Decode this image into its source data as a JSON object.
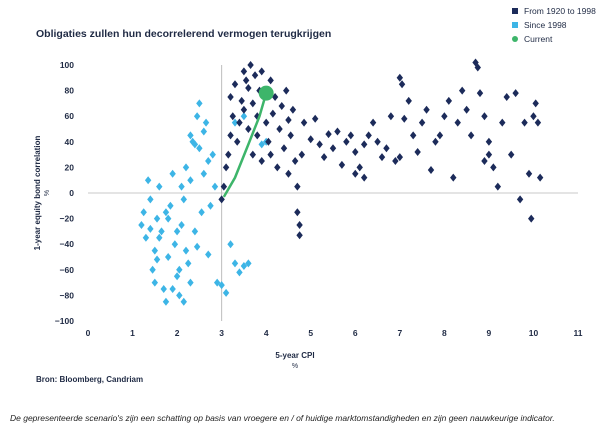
{
  "chart_data": {
    "type": "scatter",
    "title": "Obligaties zullen hun decorrelerend vermogen terugkrijgen",
    "xlabel": "5-year CPI",
    "xlabel_unit": "%",
    "ylabel": "1-year equity bond correlation",
    "ylabel_unit": "%",
    "xlim": [
      0,
      11
    ],
    "ylim": [
      -100,
      100
    ],
    "xticks": [
      "0",
      "1",
      "2",
      "3",
      "4",
      "5",
      "6",
      "7",
      "8",
      "9",
      "10",
      "11"
    ],
    "yticks": [
      "−100",
      "−80",
      "−60",
      "−40",
      "−20",
      "0",
      "20",
      "40",
      "60",
      "80",
      "100"
    ],
    "reference_line": {
      "x": 3
    },
    "legend_position": "top-right",
    "colors": {
      "s1920": "#1c2b5a",
      "s1998": "#3db5e6",
      "current": "#3db56a"
    },
    "series": [
      {
        "name": "From 1920 to 1998",
        "marker": "diamond",
        "points": [
          [
            3.0,
            -5
          ],
          [
            3.05,
            5
          ],
          [
            3.1,
            20
          ],
          [
            3.15,
            30
          ],
          [
            3.2,
            45
          ],
          [
            3.2,
            75
          ],
          [
            3.25,
            60
          ],
          [
            3.3,
            85
          ],
          [
            3.35,
            40
          ],
          [
            3.4,
            55
          ],
          [
            3.45,
            72
          ],
          [
            3.5,
            95
          ],
          [
            3.5,
            65
          ],
          [
            3.55,
            88
          ],
          [
            3.6,
            82
          ],
          [
            3.6,
            50
          ],
          [
            3.65,
            100
          ],
          [
            3.7,
            70
          ],
          [
            3.7,
            30
          ],
          [
            3.75,
            92
          ],
          [
            3.8,
            60
          ],
          [
            3.8,
            45
          ],
          [
            3.85,
            80
          ],
          [
            3.9,
            95
          ],
          [
            3.9,
            25
          ],
          [
            4.0,
            78
          ],
          [
            4.0,
            55
          ],
          [
            4.05,
            40
          ],
          [
            4.1,
            88
          ],
          [
            4.1,
            30
          ],
          [
            4.15,
            62
          ],
          [
            4.2,
            75
          ],
          [
            4.25,
            20
          ],
          [
            4.3,
            50
          ],
          [
            4.35,
            68
          ],
          [
            4.4,
            35
          ],
          [
            4.45,
            80
          ],
          [
            4.5,
            57
          ],
          [
            4.5,
            15
          ],
          [
            4.55,
            45
          ],
          [
            4.6,
            65
          ],
          [
            4.65,
            25
          ],
          [
            4.7,
            5
          ],
          [
            4.7,
            -15
          ],
          [
            4.75,
            -25
          ],
          [
            4.75,
            -33
          ],
          [
            4.8,
            30
          ],
          [
            4.85,
            55
          ],
          [
            5.0,
            42
          ],
          [
            5.1,
            58
          ],
          [
            5.2,
            38
          ],
          [
            5.3,
            28
          ],
          [
            5.4,
            46
          ],
          [
            5.5,
            35
          ],
          [
            5.6,
            48
          ],
          [
            5.7,
            22
          ],
          [
            5.8,
            40
          ],
          [
            5.9,
            45
          ],
          [
            6.0,
            32
          ],
          [
            6.0,
            15
          ],
          [
            6.1,
            20
          ],
          [
            6.2,
            38
          ],
          [
            6.3,
            45
          ],
          [
            6.4,
            55
          ],
          [
            6.5,
            40
          ],
          [
            6.6,
            28
          ],
          [
            6.7,
            35
          ],
          [
            6.8,
            60
          ],
          [
            6.9,
            25
          ],
          [
            7.0,
            90
          ],
          [
            7.05,
            85
          ],
          [
            7.1,
            58
          ],
          [
            7.2,
            72
          ],
          [
            7.3,
            45
          ],
          [
            7.4,
            32
          ],
          [
            7.5,
            55
          ],
          [
            7.6,
            65
          ],
          [
            7.7,
            18
          ],
          [
            7.8,
            40
          ],
          [
            7.9,
            45
          ],
          [
            8.0,
            60
          ],
          [
            8.1,
            72
          ],
          [
            8.2,
            12
          ],
          [
            8.3,
            55
          ],
          [
            8.4,
            80
          ],
          [
            8.5,
            65
          ],
          [
            8.6,
            45
          ],
          [
            8.7,
            102
          ],
          [
            8.75,
            98
          ],
          [
            8.8,
            78
          ],
          [
            8.9,
            60
          ],
          [
            9.0,
            40
          ],
          [
            9.1,
            20
          ],
          [
            9.2,
            5
          ],
          [
            9.3,
            55
          ],
          [
            9.4,
            75
          ],
          [
            9.5,
            30
          ],
          [
            9.6,
            78
          ],
          [
            9.7,
            -5
          ],
          [
            9.8,
            55
          ],
          [
            9.9,
            15
          ],
          [
            9.95,
            -20
          ],
          [
            10.0,
            60
          ],
          [
            10.05,
            70
          ],
          [
            10.1,
            55
          ],
          [
            10.15,
            12
          ],
          [
            9.0,
            30
          ],
          [
            8.9,
            25
          ],
          [
            7.0,
            28
          ],
          [
            6.2,
            12
          ]
        ]
      },
      {
        "name": "Since 1998",
        "marker": "diamond",
        "points": [
          [
            1.2,
            -25
          ],
          [
            1.25,
            -15
          ],
          [
            1.3,
            -35
          ],
          [
            1.35,
            10
          ],
          [
            1.4,
            -5
          ],
          [
            1.45,
            -60
          ],
          [
            1.5,
            -70
          ],
          [
            1.5,
            -45
          ],
          [
            1.55,
            -20
          ],
          [
            1.6,
            5
          ],
          [
            1.65,
            -30
          ],
          [
            1.7,
            -75
          ],
          [
            1.75,
            -85
          ],
          [
            1.8,
            -50
          ],
          [
            1.85,
            -10
          ],
          [
            1.9,
            15
          ],
          [
            1.95,
            -40
          ],
          [
            2.0,
            -65
          ],
          [
            2.05,
            -80
          ],
          [
            2.1,
            -25
          ],
          [
            2.15,
            -5
          ],
          [
            2.2,
            20
          ],
          [
            2.25,
            -55
          ],
          [
            2.3,
            -70
          ],
          [
            2.3,
            45
          ],
          [
            2.35,
            40
          ],
          [
            2.4,
            -30
          ],
          [
            2.45,
            60
          ],
          [
            2.5,
            70
          ],
          [
            2.5,
            35
          ],
          [
            2.55,
            -15
          ],
          [
            2.6,
            15
          ],
          [
            2.65,
            55
          ],
          [
            2.7,
            25
          ],
          [
            2.75,
            -10
          ],
          [
            2.8,
            30
          ],
          [
            2.85,
            5
          ],
          [
            2.9,
            -70
          ],
          [
            3.0,
            -72
          ],
          [
            3.1,
            -78
          ],
          [
            3.3,
            -55
          ],
          [
            3.4,
            -62
          ],
          [
            3.5,
            -57
          ],
          [
            3.6,
            -55
          ],
          [
            3.2,
            -40
          ],
          [
            1.4,
            -28
          ],
          [
            1.6,
            -35
          ],
          [
            1.75,
            -15
          ],
          [
            2.0,
            -30
          ],
          [
            2.2,
            -45
          ],
          [
            1.9,
            -75
          ],
          [
            2.05,
            -60
          ],
          [
            2.15,
            -85
          ],
          [
            2.6,
            48
          ],
          [
            2.4,
            38
          ],
          [
            2.3,
            10
          ],
          [
            2.1,
            5
          ],
          [
            3.3,
            55
          ],
          [
            3.5,
            60
          ],
          [
            3.9,
            38
          ],
          [
            4.0,
            40
          ],
          [
            1.8,
            -20
          ],
          [
            2.45,
            -42
          ],
          [
            1.55,
            -52
          ],
          [
            2.7,
            -48
          ]
        ]
      },
      {
        "name": "Current",
        "marker": "circle",
        "points": [
          [
            4.0,
            78
          ]
        ],
        "trail": [
          [
            3.05,
            -3
          ],
          [
            3.3,
            12
          ],
          [
            3.6,
            38
          ],
          [
            3.85,
            60
          ],
          [
            4.0,
            78
          ]
        ]
      }
    ]
  },
  "source": "Bron: Bloomberg, Candriam",
  "footnote": "De gepresenteerde scenario's zijn een schatting op basis van vroegere en / of huidige marktomstandigheden en zijn geen nauwkeurige indicator."
}
